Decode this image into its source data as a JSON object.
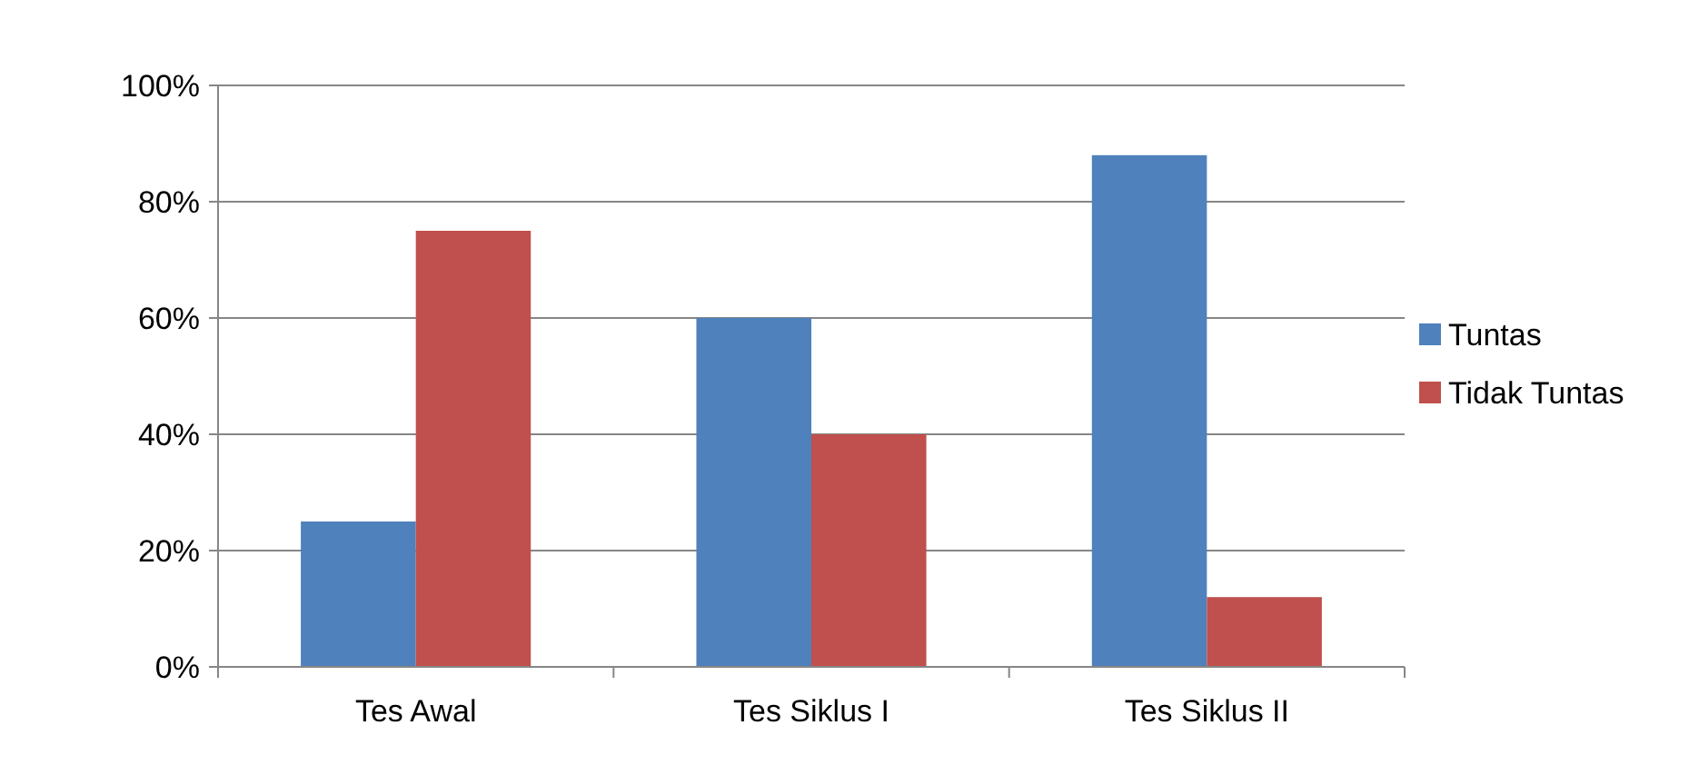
{
  "chart_data": {
    "type": "bar",
    "categories": [
      "Tes Awal",
      "Tes Siklus I",
      "Tes Siklus II"
    ],
    "series": [
      {
        "name": "Tuntas",
        "color": "#4f81bd",
        "values": [
          25,
          60,
          88
        ]
      },
      {
        "name": "Tidak Tuntas",
        "color": "#c0504d",
        "values": [
          75,
          40,
          12
        ]
      }
    ],
    "ylim": [
      0,
      100
    ],
    "yticks": [
      {
        "value": 0,
        "label": "0%"
      },
      {
        "value": 20,
        "label": "20%"
      },
      {
        "value": 40,
        "label": "40%"
      },
      {
        "value": 60,
        "label": "60%"
      },
      {
        "value": 80,
        "label": "80%"
      },
      {
        "value": 100,
        "label": "100%"
      }
    ],
    "grid": "y",
    "legend": "right"
  }
}
